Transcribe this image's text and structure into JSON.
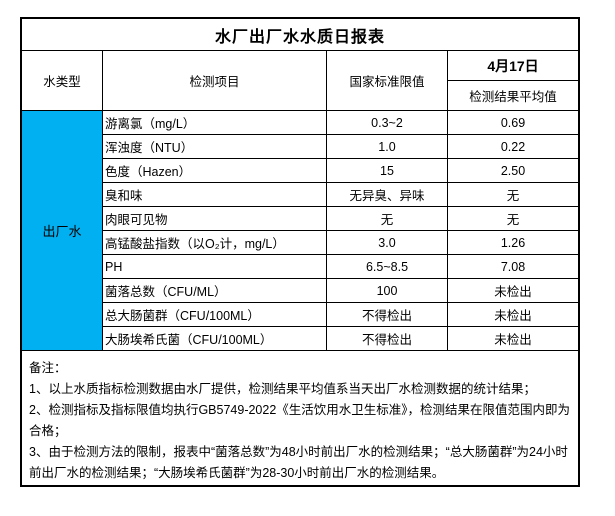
{
  "title": "水厂出厂水水质日报表",
  "header": {
    "water_type": "水类型",
    "item": "检测项目",
    "standard": "国家标准限值",
    "date": "4月17日",
    "result_avg": "检测结果平均值"
  },
  "water_type_value": "出厂水",
  "colors": {
    "water_type_bg": "#00B0F0",
    "border": "#000000",
    "background": "#FFFFFF"
  },
  "rows": [
    {
      "item": "游离氯（mg/L）",
      "standard": "0.3~2",
      "result": "0.69"
    },
    {
      "item": "浑浊度（NTU）",
      "standard": "1.0",
      "result": "0.22"
    },
    {
      "item": "色度（Hazen）",
      "standard": "15",
      "result": "2.50"
    },
    {
      "item": "臭和味",
      "standard": "无异臭、异味",
      "result": "无"
    },
    {
      "item": "肉眼可见物",
      "standard": "无",
      "result": "无"
    },
    {
      "item": "高锰酸盐指数（以O₂计，mg/L）",
      "standard": "3.0",
      "result": "1.26"
    },
    {
      "item": "PH",
      "standard": "6.5~8.5",
      "result": "7.08"
    },
    {
      "item": "菌落总数（CFU/ML）",
      "standard": "100",
      "result": "未检出"
    },
    {
      "item": "总大肠菌群（CFU/100ML）",
      "standard": "不得检出",
      "result": "未检出"
    },
    {
      "item": "大肠埃希氏菌（CFU/100ML）",
      "standard": "不得检出",
      "result": "未检出"
    }
  ],
  "notes": {
    "label": "备注：",
    "lines": [
      "1、以上水质指标检测数据由水厂提供，检测结果平均值系当天出厂水检测数据的统计结果；",
      "2、检测指标及指标限值均执行GB5749-2022《生活饮用水卫生标准》，检测结果在限值范围内即为合格；",
      "3、由于检测方法的限制，报表中“菌落总数”为48小时前出厂水的检测结果；“总大肠菌群”为24小时前出厂水的检测结果；“大肠埃希氏菌群”为28-30小时前出厂水的检测结果。"
    ]
  }
}
